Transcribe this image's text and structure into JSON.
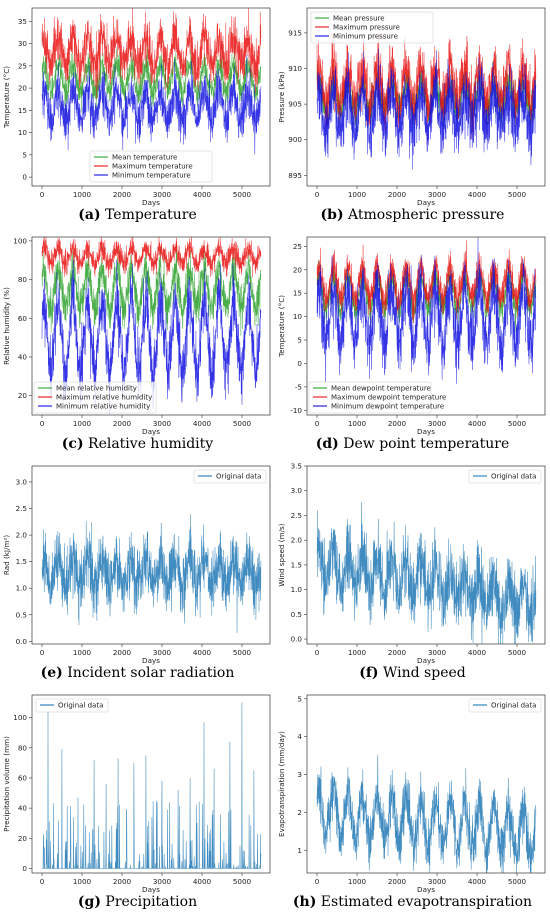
{
  "chart_data": [
    {
      "id": "a",
      "caption_letter": "(a)",
      "caption_text": "Temperature",
      "type": "line",
      "xlabel": "Days",
      "ylabel": "Temperature (°C)",
      "xlim": [
        -250,
        5700
      ],
      "ylim": [
        -2,
        38
      ],
      "xticks": [
        0,
        1000,
        2000,
        3000,
        4000,
        5000
      ],
      "yticks": [
        0,
        5,
        10,
        15,
        20,
        25,
        30,
        35
      ],
      "legend_position": "lower-center",
      "series": [
        {
          "name": "Mean temperature",
          "color": "#2ca02c",
          "days": [
            0,
            365,
            730,
            1095,
            1460,
            1825,
            2190,
            2555,
            2920,
            3285,
            3650,
            4015,
            4380,
            4745,
            5110,
            5475
          ],
          "values": [
            22,
            22.5,
            22,
            22,
            22,
            22.5,
            22,
            22,
            22,
            22.5,
            22,
            22,
            22,
            22.5,
            22,
            22
          ],
          "amplitude": 3.0,
          "noise": 1.6
        },
        {
          "name": "Maximum temperature",
          "color": "#e8110f",
          "days": [
            0,
            365,
            730,
            1095,
            1460,
            1825,
            2190,
            2555,
            2920,
            3285,
            3650,
            4015,
            4380,
            4745,
            5110,
            5475
          ],
          "values": [
            28,
            28.5,
            28,
            28,
            28,
            29,
            28,
            28,
            28,
            28.5,
            28,
            28,
            28,
            28.5,
            28,
            28
          ],
          "amplitude": 3.0,
          "noise": 2.6
        },
        {
          "name": "Minimum temperature",
          "color": "#1010e0",
          "days": [
            0,
            365,
            730,
            1095,
            1460,
            1825,
            2190,
            2555,
            2920,
            3285,
            3650,
            4015,
            4380,
            4745,
            5110,
            5475
          ],
          "values": [
            16,
            16,
            16,
            16,
            16.5,
            16,
            16,
            16,
            16,
            16,
            16,
            16,
            16,
            16,
            16,
            16
          ],
          "amplitude": 3.5,
          "noise": 2.5
        }
      ]
    },
    {
      "id": "b",
      "caption_letter": "(b)",
      "caption_text": "Atmospheric pressure",
      "type": "line",
      "xlabel": "Days",
      "ylabel": "Pressure (kPa)",
      "xlim": [
        -250,
        5700
      ],
      "ylim": [
        893.5,
        918.5
      ],
      "xticks": [
        0,
        1000,
        2000,
        3000,
        4000,
        5000
      ],
      "yticks": [
        895,
        900,
        905,
        910,
        915
      ],
      "legend_position": "upper-left",
      "series": [
        {
          "name": "Mean pressure",
          "color": "#2ca02c",
          "days": [
            0,
            365,
            730,
            1095,
            1460,
            1825,
            2190,
            2555,
            2920,
            3285,
            3650,
            4015,
            4380,
            4745,
            5110,
            5475
          ],
          "values": [
            906,
            906,
            906,
            906,
            906,
            906,
            906,
            906,
            906,
            906,
            906,
            906,
            906,
            906,
            906,
            906
          ],
          "amplitude": 2.0,
          "noise": 1.2
        },
        {
          "name": "Maximum pressure",
          "color": "#e8110f",
          "days": [
            0,
            365,
            730,
            1095,
            1460,
            1825,
            2190,
            2555,
            2920,
            3285,
            3650,
            4015,
            4380,
            4745,
            5110,
            5475
          ],
          "values": [
            907.5,
            907.5,
            907.5,
            907.5,
            907.5,
            907.5,
            907.5,
            907.5,
            907.5,
            907.5,
            907.5,
            907.5,
            907.5,
            907.5,
            907.5,
            907.5
          ],
          "amplitude": 2.5,
          "noise": 2.0
        },
        {
          "name": "Minimum pressure",
          "color": "#1010e0",
          "days": [
            0,
            365,
            730,
            1095,
            1460,
            1825,
            2190,
            2555,
            2920,
            3285,
            3650,
            4015,
            4380,
            4745,
            5110,
            5475
          ],
          "values": [
            904,
            904,
            904,
            904,
            904,
            904,
            904,
            904,
            904,
            904,
            904,
            904,
            904,
            904,
            904,
            904
          ],
          "amplitude": 2.5,
          "noise": 2.2
        }
      ]
    },
    {
      "id": "c",
      "caption_letter": "(c)",
      "caption_text": "Relative humidity",
      "type": "line",
      "xlabel": "Days",
      "ylabel": "Relative humidity (%)",
      "xlim": [
        -250,
        5700
      ],
      "ylim": [
        10,
        102
      ],
      "xticks": [
        0,
        1000,
        2000,
        3000,
        4000,
        5000
      ],
      "yticks": [
        20,
        40,
        60,
        80,
        100
      ],
      "legend_position": "lower-left",
      "series": [
        {
          "name": "Mean relative humidity",
          "color": "#2ca02c",
          "days": [
            0,
            365,
            730,
            1095,
            1460,
            1825,
            2190,
            2555,
            2920,
            3285,
            3650,
            4015,
            4380,
            4745,
            5110,
            5475
          ],
          "values": [
            75,
            75,
            75,
            75,
            75,
            75,
            75,
            75,
            75,
            75,
            75,
            75,
            75,
            75,
            75,
            75
          ],
          "amplitude": 10,
          "noise": 5
        },
        {
          "name": "Maximum relative humidity",
          "color": "#e8110f",
          "days": [
            0,
            365,
            730,
            1095,
            1460,
            1825,
            2190,
            2555,
            2920,
            3285,
            3650,
            4015,
            4380,
            4745,
            5110,
            5475
          ],
          "values": [
            92,
            92,
            92,
            92,
            92,
            92,
            92,
            92,
            92,
            92,
            92,
            92,
            92,
            92,
            92,
            92
          ],
          "amplitude": 4,
          "noise": 3
        },
        {
          "name": "Minimum relative humidity",
          "color": "#1010e0",
          "days": [
            0,
            365,
            730,
            1095,
            1460,
            1825,
            2190,
            2555,
            2920,
            3285,
            3650,
            4015,
            4380,
            4745,
            5110,
            5475
          ],
          "values": [
            50,
            50,
            50,
            50,
            50,
            50,
            50,
            50,
            50,
            50,
            50,
            50,
            50,
            50,
            50,
            50
          ],
          "amplitude": 18,
          "noise": 8
        }
      ]
    },
    {
      "id": "d",
      "caption_letter": "(d)",
      "caption_text": "Dew point temperature",
      "type": "line",
      "xlabel": "Days",
      "ylabel": "Temperature (°C)",
      "xlim": [
        -250,
        5700
      ],
      "ylim": [
        -11,
        27
      ],
      "xticks": [
        0,
        1000,
        2000,
        3000,
        4000,
        5000
      ],
      "yticks": [
        -10,
        -5,
        0,
        5,
        10,
        15,
        20,
        25
      ],
      "legend_position": "lower-left",
      "series": [
        {
          "name": "Mean dewpoint temperature",
          "color": "#2ca02c",
          "days": [
            0,
            365,
            730,
            1095,
            1460,
            1825,
            2190,
            2555,
            2920,
            3285,
            3650,
            4015,
            4380,
            4745,
            5110,
            5475
          ],
          "values": [
            15,
            15,
            15,
            15,
            15,
            15,
            15,
            15,
            15,
            15,
            15,
            15,
            15,
            15,
            15,
            15
          ],
          "amplitude": 3.5,
          "noise": 1.5
        },
        {
          "name": "Maximum dewpoint temperature",
          "color": "#e8110f",
          "days": [
            0,
            365,
            730,
            1095,
            1460,
            1825,
            2190,
            2555,
            2920,
            3285,
            3650,
            4015,
            4380,
            4745,
            5110,
            5475
          ],
          "values": [
            17,
            17,
            17,
            17,
            17,
            17,
            17,
            17,
            17,
            17,
            17,
            17,
            17,
            17,
            17,
            17
          ],
          "amplitude": 3.5,
          "noise": 1.8
        },
        {
          "name": "Minimum dewpoint temperature",
          "color": "#1010e0",
          "days": [
            0,
            365,
            730,
            1095,
            1460,
            1825,
            2190,
            2555,
            2920,
            3285,
            3650,
            4015,
            4380,
            4745,
            5110,
            5475
          ],
          "values": [
            10,
            10,
            10,
            10,
            10,
            10,
            10,
            10,
            10,
            10,
            10,
            10,
            10,
            10,
            10,
            10
          ],
          "amplitude": 6,
          "noise": 3.5
        }
      ]
    },
    {
      "id": "e",
      "caption_letter": "(e)",
      "caption_text": "Incident solar radiation",
      "type": "line",
      "xlabel": "Days",
      "ylabel": "Rad (kJ/m²)",
      "xlim": [
        -250,
        5700
      ],
      "ylim": [
        -0.05,
        3.3
      ],
      "xticks": [
        0,
        1000,
        2000,
        3000,
        4000,
        5000
      ],
      "yticks": [
        0.0,
        0.5,
        1.0,
        1.5,
        2.0,
        2.5,
        3.0
      ],
      "legend_position": "upper-right",
      "series": [
        {
          "name": "Original data",
          "color": "#1f77b4",
          "days": [
            0,
            365,
            730,
            1095,
            1460,
            1825,
            2190,
            2555,
            2920,
            3285,
            3650,
            4015,
            4380,
            4745,
            5110,
            5475
          ],
          "values": [
            1.3,
            1.3,
            1.3,
            1.3,
            1.3,
            1.3,
            1.3,
            1.3,
            1.3,
            1.3,
            1.3,
            1.3,
            1.3,
            1.3,
            1.3,
            1.3
          ],
          "amplitude": 0.25,
          "noise": 0.28
        }
      ]
    },
    {
      "id": "f",
      "caption_letter": "(f)",
      "caption_text": "Wind speed",
      "type": "line",
      "xlabel": "Days",
      "ylabel": "Wind speed (m/s)",
      "xlim": [
        -250,
        5700
      ],
      "ylim": [
        -0.1,
        3.5
      ],
      "xticks": [
        0,
        1000,
        2000,
        3000,
        4000,
        5000
      ],
      "yticks": [
        0.0,
        0.5,
        1.0,
        1.5,
        2.0,
        2.5,
        3.0,
        3.5
      ],
      "legend_position": "upper-right",
      "series": [
        {
          "name": "Original data",
          "color": "#1f77b4",
          "days": [
            0,
            365,
            730,
            1095,
            1460,
            1825,
            2190,
            2555,
            2920,
            3285,
            3650,
            4015,
            4380,
            4745,
            5110,
            5475
          ],
          "values": [
            1.5,
            1.5,
            1.4,
            1.35,
            1.3,
            1.3,
            1.25,
            1.2,
            1.15,
            1.05,
            1.0,
            0.95,
            0.85,
            0.8,
            0.75,
            0.7
          ],
          "amplitude": 0.35,
          "noise": 0.35
        }
      ]
    },
    {
      "id": "g",
      "caption_letter": "(g)",
      "caption_text": "Precipitation",
      "type": "line",
      "xlabel": "Days",
      "ylabel": "Precipitation volume (mm)",
      "xlim": [
        -250,
        5700
      ],
      "ylim": [
        -3,
        115
      ],
      "xticks": [
        0,
        1000,
        2000,
        3000,
        4000,
        5000
      ],
      "yticks": [
        0,
        20,
        40,
        60,
        80,
        100
      ],
      "legend_position": "upper-left",
      "series": [
        {
          "name": "Original data",
          "color": "#1f77b4",
          "days": [
            150,
            500,
            900,
            1300,
            1600,
            1900,
            2300,
            2600,
            3000,
            3400,
            3700,
            4050,
            4300,
            4700,
            5000,
            5300
          ],
          "values": [
            104,
            79,
            47,
            72,
            56,
            73,
            70,
            75,
            58,
            52,
            60,
            97,
            66,
            84,
            110,
            65
          ],
          "amplitude": 0,
          "noise": 0
        }
      ]
    },
    {
      "id": "h",
      "caption_letter": "(h)",
      "caption_text": "Estimated evapotranspiration",
      "type": "line",
      "xlabel": "Days",
      "ylabel": "Evapotranspiration (mm/day)",
      "xlim": [
        -250,
        5700
      ],
      "ylim": [
        0.4,
        5.1
      ],
      "xticks": [
        0,
        1000,
        2000,
        3000,
        4000,
        5000
      ],
      "yticks": [
        1,
        2,
        3,
        4,
        5
      ],
      "legend_position": "upper-right",
      "series": [
        {
          "name": "Original data",
          "color": "#1f77b4",
          "days": [
            0,
            365,
            730,
            1095,
            1460,
            1825,
            2190,
            2555,
            2920,
            3285,
            3650,
            4015,
            4380,
            4745,
            5110,
            5475
          ],
          "values": [
            2.0,
            2.0,
            1.9,
            1.9,
            1.9,
            1.8,
            1.8,
            1.7,
            1.7,
            1.7,
            1.6,
            1.6,
            1.6,
            1.5,
            1.5,
            1.5
          ],
          "amplitude": 0.6,
          "noise": 0.35
        }
      ]
    }
  ]
}
